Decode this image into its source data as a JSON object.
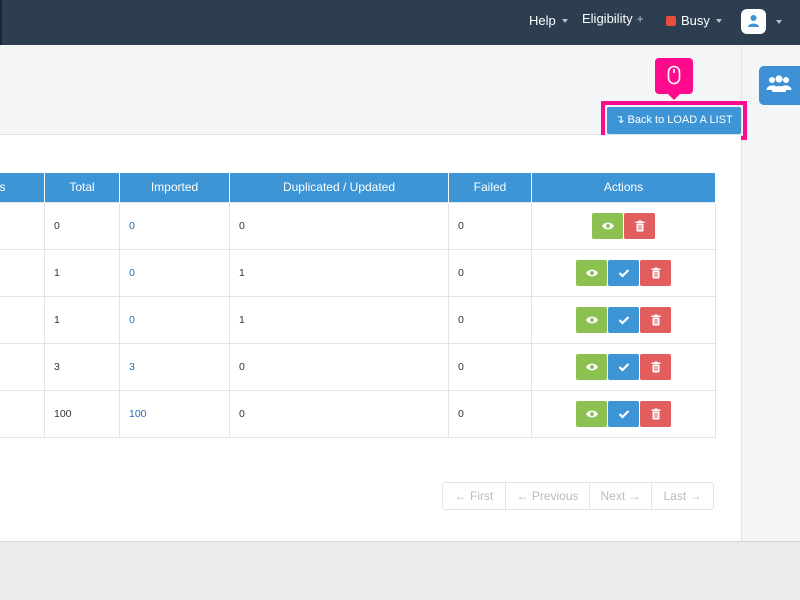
{
  "navbar": {
    "help_label": "Help",
    "eligibility_label": "Eligibility",
    "eligibility_plus": "+",
    "status_label": "Busy",
    "status_color": "#e74c3c",
    "user_icon": "user-icon"
  },
  "header": {
    "back_button_label": "Back to LOAD A LIST",
    "back_button_icon": "level-down-icon",
    "contacts_icon": "users-icon",
    "pointer_icon": "mouse-icon"
  },
  "table": {
    "columns": [
      "s",
      "Total",
      "Imported",
      "Duplicated / Updated",
      "Failed",
      "Actions"
    ],
    "rows": [
      {
        "total": "0",
        "imported": "0",
        "duplicated": "0",
        "failed": "0",
        "actions": [
          "view",
          "delete"
        ]
      },
      {
        "total": "1",
        "imported": "0",
        "duplicated": "1",
        "failed": "0",
        "actions": [
          "view",
          "confirm",
          "delete"
        ]
      },
      {
        "total": "1",
        "imported": "0",
        "duplicated": "1",
        "failed": "0",
        "actions": [
          "view",
          "confirm",
          "delete"
        ]
      },
      {
        "total": "3",
        "imported": "3",
        "duplicated": "0",
        "failed": "0",
        "actions": [
          "view",
          "confirm",
          "delete"
        ]
      },
      {
        "total": "100",
        "imported": "100",
        "duplicated": "0",
        "failed": "0",
        "actions": [
          "view",
          "confirm",
          "delete"
        ]
      }
    ]
  },
  "pagination": {
    "first": "← First",
    "previous": "← Previous",
    "next": "Next →",
    "last": "Last →"
  },
  "colors": {
    "navbar": "#2c3e50",
    "primary": "#3d95d6",
    "success": "#8cc152",
    "danger": "#e25d5d",
    "highlight": "#ff0a8c"
  }
}
